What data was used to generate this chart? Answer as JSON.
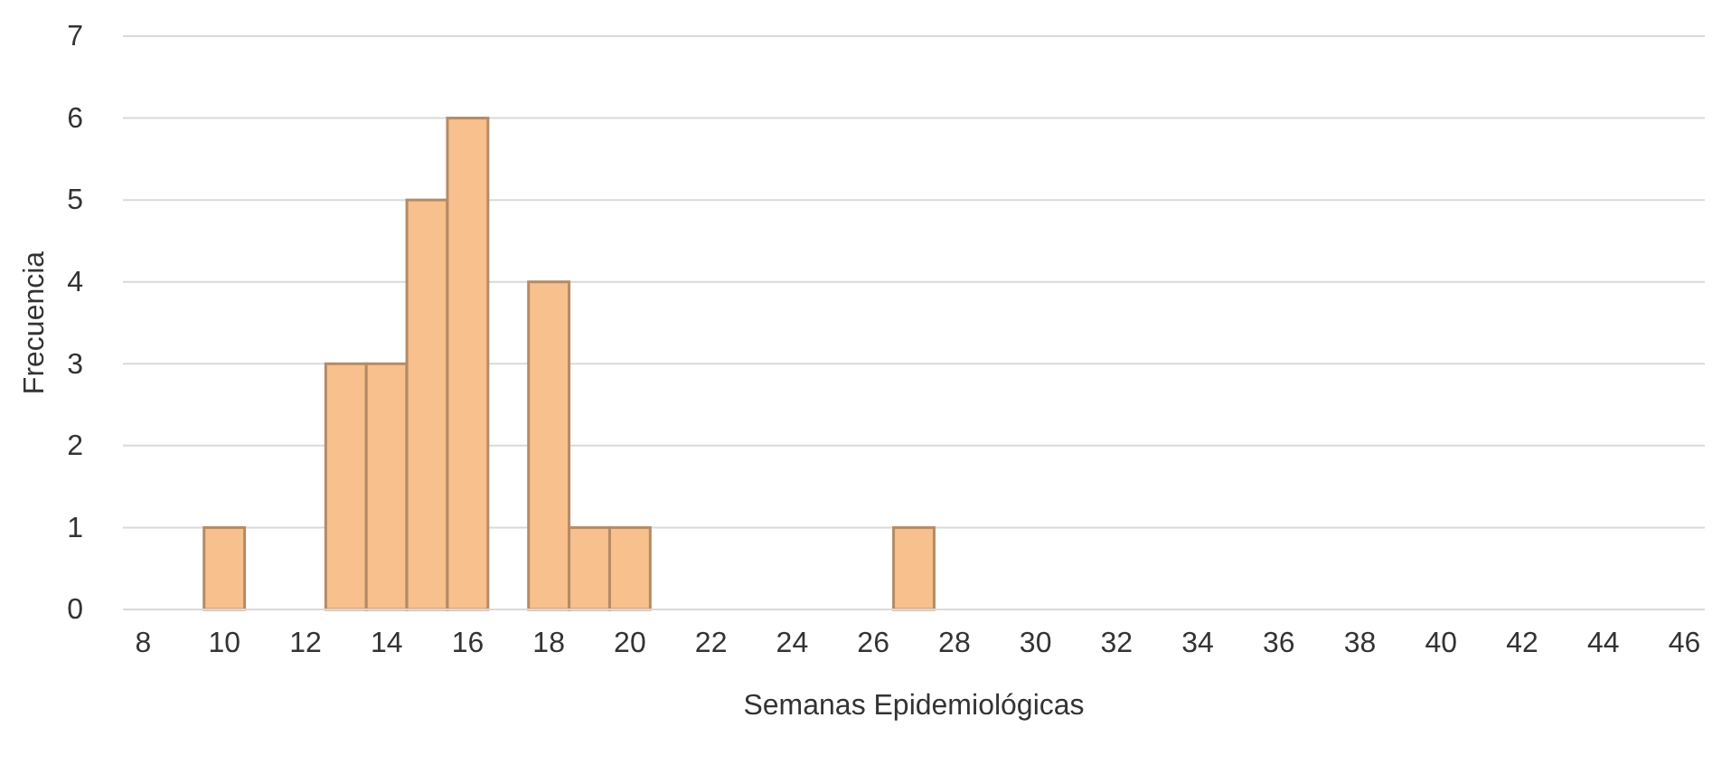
{
  "chart_data": {
    "type": "bar",
    "xlabel": "Semanas Epidemiológicas",
    "ylabel": "Frecuencia",
    "categories": [
      "8",
      null,
      "10",
      null,
      "12",
      null,
      "14",
      null,
      "16",
      null,
      "18",
      null,
      "20",
      null,
      "22",
      null,
      "24",
      null,
      "26",
      null,
      "28",
      null,
      "30",
      null,
      "32",
      null,
      "34",
      null,
      "36",
      null,
      "38",
      null,
      "40",
      null,
      "42",
      null,
      "44",
      null,
      "46"
    ],
    "values": [
      0,
      0,
      1,
      0,
      0,
      3,
      3,
      5,
      6,
      0,
      4,
      1,
      1,
      0,
      0,
      0,
      0,
      0,
      0,
      1,
      0,
      0,
      0,
      0,
      0,
      0,
      0,
      0,
      0,
      0,
      0,
      0,
      0,
      0,
      0,
      0,
      0,
      0,
      0
    ],
    "color": "#f8c08c",
    "ylim": [
      0,
      7
    ],
    "yticks": [
      0,
      1,
      2,
      3,
      4,
      5,
      6,
      7
    ],
    "grid": "y"
  }
}
